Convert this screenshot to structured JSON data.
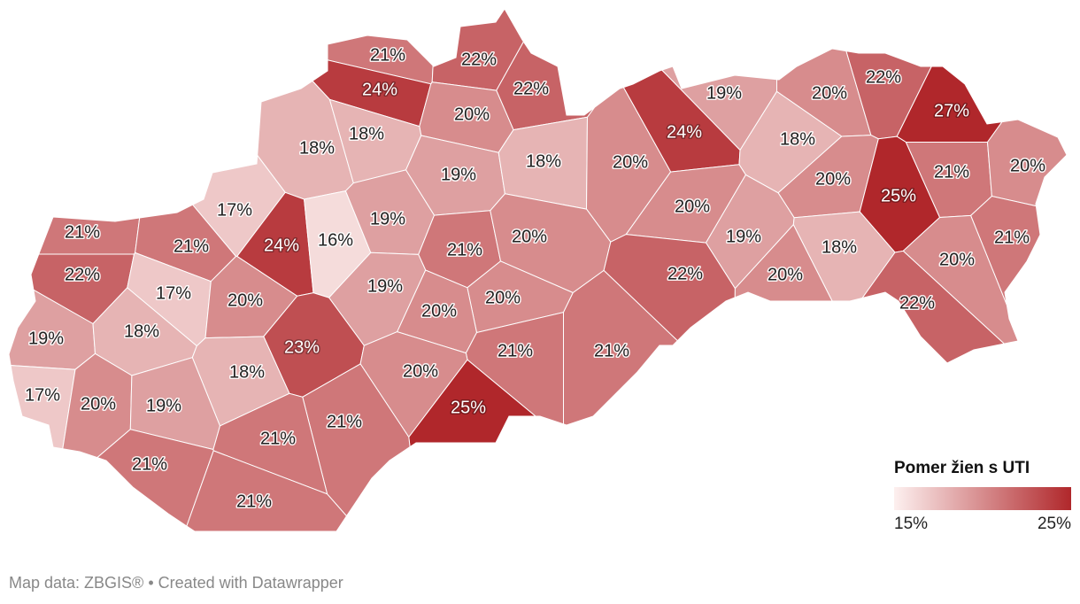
{
  "chart_data": {
    "type": "choropleth",
    "values": [
      21,
      22,
      24,
      22,
      20,
      19,
      20,
      22,
      27,
      18,
      18,
      24,
      18,
      19,
      18,
      20,
      20,
      25,
      21,
      20,
      17,
      24,
      16,
      19,
      21,
      21,
      21,
      20,
      20,
      19,
      18,
      21,
      20,
      22,
      17,
      20,
      19,
      22,
      20,
      20,
      20,
      22,
      19,
      18,
      23,
      21,
      21,
      18,
      20,
      17,
      20,
      19,
      25,
      21,
      21,
      21,
      21
    ],
    "value_labels": [
      "21%",
      "22%",
      "24%",
      "22%",
      "20%",
      "19%",
      "20%",
      "22%",
      "27%",
      "18%",
      "18%",
      "24%",
      "18%",
      "19%",
      "18%",
      "20%",
      "20%",
      "25%",
      "21%",
      "20%",
      "17%",
      "24%",
      "16%",
      "19%",
      "21%",
      "21%",
      "21%",
      "20%",
      "20%",
      "19%",
      "18%",
      "21%",
      "20%",
      "22%",
      "17%",
      "20%",
      "19%",
      "22%",
      "20%",
      "20%",
      "20%",
      "22%",
      "19%",
      "18%",
      "23%",
      "21%",
      "21%",
      "18%",
      "20%",
      "17%",
      "20%",
      "19%",
      "25%",
      "21%",
      "21%",
      "21%",
      "21%"
    ],
    "legend": {
      "title": "Pomer žien s UTI",
      "colors": [
        "#fdf0ef",
        "#b0272b"
      ],
      "lim": [
        15,
        25
      ],
      "ticks": [
        {
          "value": 15,
          "label": "15%"
        },
        {
          "value": 25,
          "label": "25%"
        }
      ]
    }
  },
  "footer": "Map data: ZBGIS® • Created with Datawrapper"
}
